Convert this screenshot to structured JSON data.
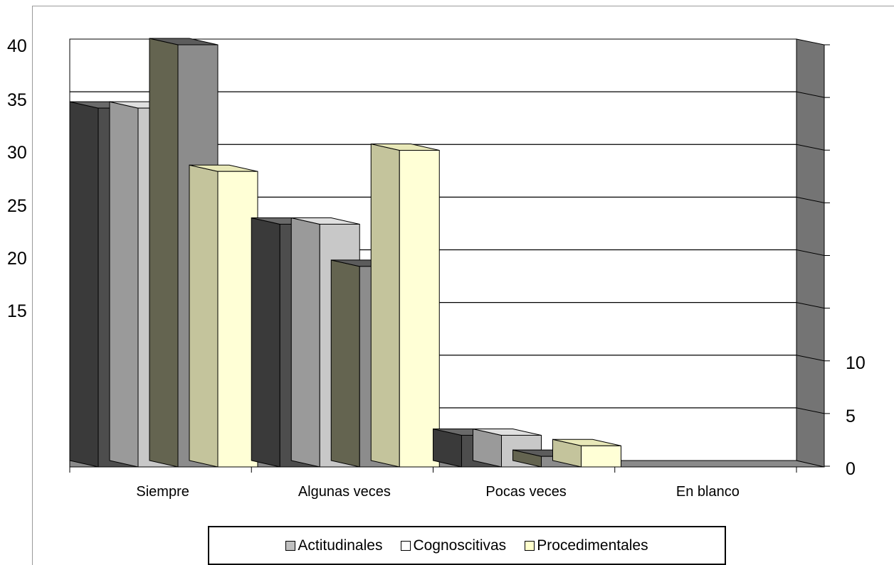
{
  "chart_data": {
    "type": "bar",
    "title": "",
    "xlabel": "",
    "ylabel": "",
    "categories": [
      "Siempre",
      "Algunas veces",
      "Pocas veces",
      "En blanco"
    ],
    "series": [
      {
        "name": "",
        "values": [
          34,
          23,
          3,
          0
        ]
      },
      {
        "name": "Actitudinales",
        "values": [
          34,
          23,
          3,
          0
        ]
      },
      {
        "name": "Cognoscitivas",
        "values": [
          40,
          19,
          1,
          0
        ]
      },
      {
        "name": "Procedimentales",
        "values": [
          28,
          30,
          2,
          0
        ]
      }
    ],
    "ylim": [
      0,
      40
    ],
    "left_axis_ticks": [
      "40",
      "35",
      "30",
      "25",
      "20",
      "15"
    ],
    "right_axis_ticks": [
      "10",
      "5",
      "0"
    ],
    "grid": true,
    "legend_position": "bottom",
    "colors": {
      "series_front": [
        "#4d4d4d",
        "#c8c8c8",
        "#8c8c8c",
        "#ffffd6"
      ],
      "series_side": [
        "#3a3a3a",
        "#9a9a9a",
        "#646450",
        "#c4c49c"
      ],
      "series_top": [
        "#6a6a6a",
        "#e0e0e0",
        "#5c5c5c",
        "#e8e8b8"
      ],
      "back_wall": "#ffffff",
      "side_wall": "#747474",
      "floor": "#8a8a8a",
      "gridline": "#000000"
    }
  },
  "legend": {
    "items": [
      {
        "label": "Actitudinales",
        "color": "#c0c0c0"
      },
      {
        "label": "Cognoscitivas",
        "color": "#ffffff"
      },
      {
        "label": "Procedimentales",
        "color": "#ffffcc"
      }
    ]
  }
}
